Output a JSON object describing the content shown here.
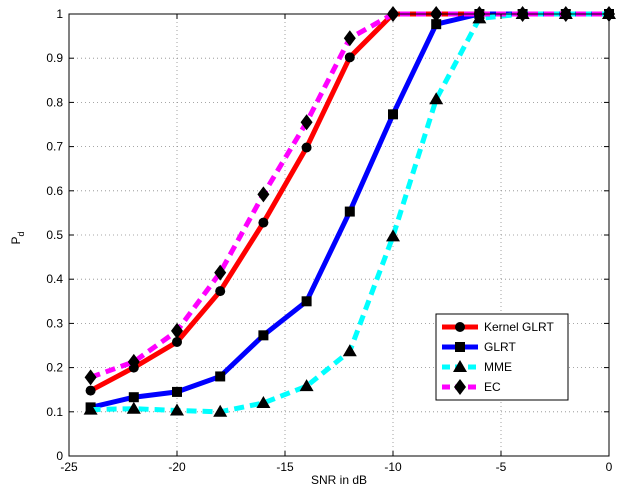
{
  "chart_data": {
    "type": "line",
    "xlabel": "SNR in dB",
    "ylabel_main": "P",
    "ylabel_sub": "d",
    "xlim": [
      -25,
      0
    ],
    "ylim": [
      0,
      1
    ],
    "xticks": [
      -25,
      -20,
      -15,
      -10,
      -5,
      0
    ],
    "yticks": [
      0,
      0.1,
      0.2,
      0.3,
      0.4,
      0.5,
      0.6,
      0.7,
      0.8,
      0.9,
      1
    ],
    "xtick_labels": [
      "-25",
      "-20",
      "-15",
      "-10",
      "-5",
      "0"
    ],
    "ytick_labels": [
      "0",
      "0.1",
      "0.2",
      "0.3",
      "0.4",
      "0.5",
      "0.6",
      "0.7",
      "0.8",
      "0.9",
      "1"
    ],
    "grid": true,
    "legend_position": "lower-right",
    "x": [
      -24,
      -22,
      -20,
      -18,
      -16,
      -14,
      -12,
      -10,
      -8,
      -6,
      -4,
      -2,
      0
    ],
    "series": [
      {
        "name": "Kernel GLRT",
        "color": "#ff0000",
        "dash": "solid",
        "marker": "circle",
        "values": [
          0.148,
          0.2,
          0.258,
          0.373,
          0.528,
          0.698,
          0.902,
          1.0,
          1.0,
          1.0,
          1.0,
          1.0,
          1.0
        ]
      },
      {
        "name": "GLRT",
        "color": "#0000ff",
        "dash": "solid",
        "marker": "square",
        "values": [
          0.11,
          0.133,
          0.145,
          0.18,
          0.273,
          0.35,
          0.553,
          0.773,
          0.977,
          1.0,
          1.0,
          1.0,
          1.0
        ]
      },
      {
        "name": "MME",
        "color": "#00ffff",
        "dash": "dashed",
        "marker": "triangle",
        "values": [
          0.105,
          0.107,
          0.103,
          0.1,
          0.12,
          0.158,
          0.237,
          0.497,
          0.807,
          0.99,
          1.0,
          1.0,
          1.0
        ]
      },
      {
        "name": "EC",
        "color": "#ff00ff",
        "dash": "dashed",
        "marker": "diamond",
        "values": [
          0.178,
          0.213,
          0.283,
          0.415,
          0.592,
          0.755,
          0.945,
          1.0,
          1.0,
          1.0,
          1.0,
          1.0,
          1.0
        ]
      }
    ]
  }
}
